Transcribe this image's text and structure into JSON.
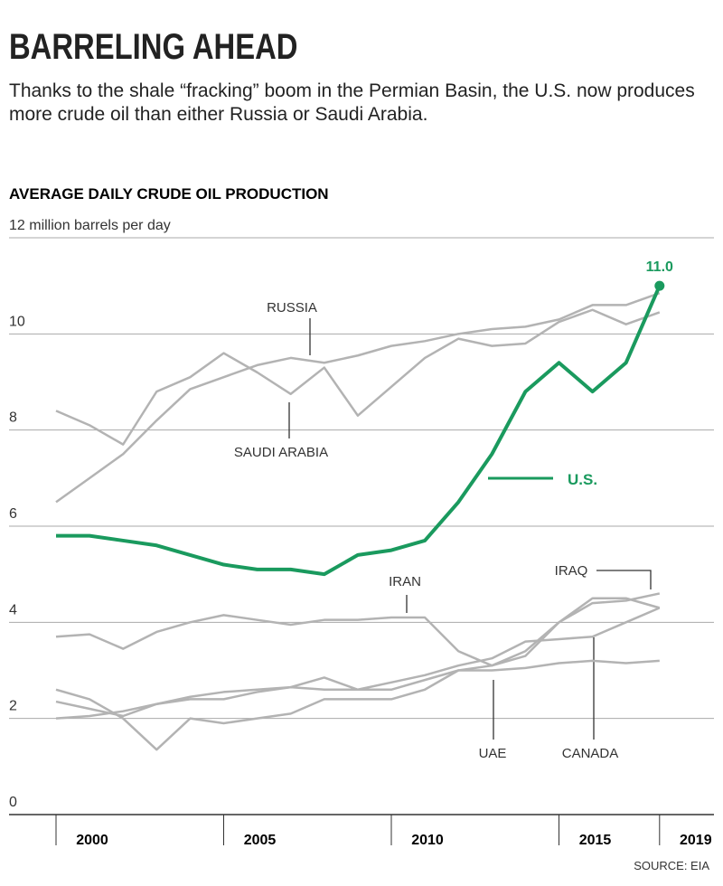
{
  "chart_data": {
    "type": "line",
    "title": "BARRELING AHEAD",
    "subtitle": "Thanks to the shale “fracking” boom in the Permian Basin, the U.S. now produces more crude oil than either Russia or Saudi Arabia.",
    "chart_title": "AVERAGE DAILY CRUDE OIL PRODUCTION",
    "source": "SOURCE: EIA",
    "categories": [
      "2000",
      null,
      null,
      null,
      null,
      "2005",
      null,
      null,
      null,
      null,
      "2010",
      null,
      null,
      null,
      null,
      "2015",
      null,
      null,
      "2019"
    ],
    "ylim": [
      0,
      12
    ],
    "yticks": [
      0,
      2,
      4,
      6,
      8,
      10,
      {
        "value": 12,
        "label": "12 million barrels per day"
      }
    ],
    "grid": true,
    "series": [
      {
        "name": "RUSSIA",
        "color": "#b3b3b3",
        "values": [
          6.5,
          7.0,
          7.5,
          8.2,
          8.85,
          9.1,
          9.35,
          9.5,
          9.4,
          9.55,
          9.75,
          9.85,
          10.0,
          10.1,
          10.15,
          10.3,
          10.6,
          10.6,
          10.85
        ]
      },
      {
        "name": "SAUDI ARABIA",
        "color": "#b3b3b3",
        "values": [
          8.4,
          8.1,
          7.7,
          8.8,
          9.1,
          9.6,
          9.2,
          8.75,
          9.3,
          8.3,
          8.9,
          9.5,
          9.9,
          9.75,
          9.8,
          10.25,
          10.5,
          10.2,
          10.45
        ]
      },
      {
        "name": "IRAN",
        "color": "#b3b3b3",
        "values": [
          3.7,
          3.75,
          3.45,
          3.8,
          4.0,
          4.15,
          4.05,
          3.95,
          4.05,
          4.05,
          4.1,
          4.1,
          3.4,
          3.1,
          3.4,
          4.0,
          4.5,
          4.5,
          4.3
        ]
      },
      {
        "name": "IRAQ",
        "color": "#b3b3b3",
        "values": [
          2.6,
          2.4,
          2.0,
          1.35,
          2.0,
          1.9,
          2.0,
          2.1,
          2.4,
          2.4,
          2.4,
          2.6,
          3.0,
          3.1,
          3.3,
          4.0,
          4.4,
          4.45,
          4.6
        ]
      },
      {
        "name": "CANADA",
        "color": "#b3b3b3",
        "values": [
          2.0,
          2.05,
          2.15,
          2.3,
          2.4,
          2.4,
          2.55,
          2.65,
          2.6,
          2.6,
          2.75,
          2.9,
          3.1,
          3.25,
          3.6,
          3.65,
          3.7,
          4.0,
          4.3
        ]
      },
      {
        "name": "UAE",
        "color": "#b3b3b3",
        "values": [
          2.35,
          2.2,
          2.05,
          2.3,
          2.45,
          2.55,
          2.6,
          2.65,
          2.85,
          2.6,
          2.6,
          2.8,
          3.0,
          3.0,
          3.05,
          3.15,
          3.2,
          3.15,
          3.2
        ]
      },
      {
        "name": "U.S.",
        "color": "#1a9a5e",
        "values": [
          5.8,
          5.8,
          5.7,
          5.6,
          5.4,
          5.2,
          5.1,
          5.1,
          5.0,
          5.4,
          5.5,
          5.7,
          6.5,
          7.5,
          8.8,
          9.4,
          8.8,
          9.4,
          11.0
        ],
        "value_labels": [
          null,
          null,
          null,
          null,
          null,
          null,
          null,
          null,
          null,
          null,
          null,
          null,
          null,
          null,
          null,
          null,
          null,
          null,
          "11.0"
        ]
      }
    ]
  }
}
